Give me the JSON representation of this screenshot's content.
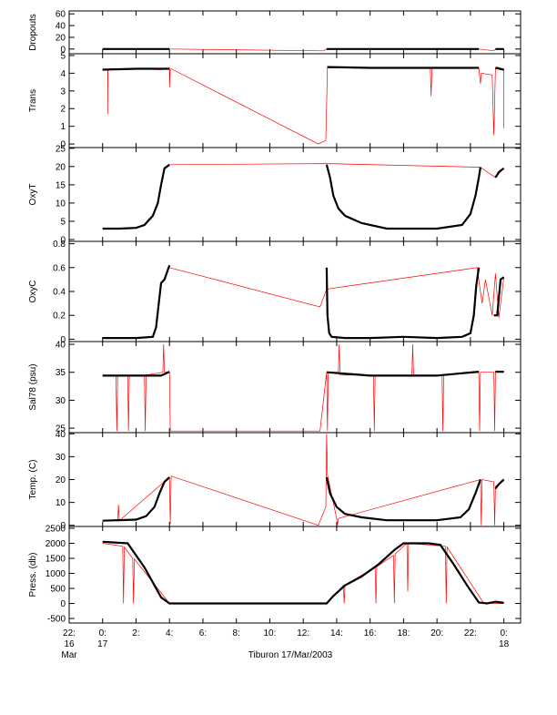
{
  "figure": {
    "caption": "Tiburon 17/Mar/2003",
    "x_ticks": [
      {
        "line1": "22:",
        "line2": "16",
        "line3": "Mar"
      },
      {
        "line1": "0:",
        "line2": "17",
        "line3": ""
      },
      {
        "line1": "2:",
        "line2": "",
        "line3": ""
      },
      {
        "line1": "4:",
        "line2": "",
        "line3": ""
      },
      {
        "line1": "6:",
        "line2": "",
        "line3": ""
      },
      {
        "line1": "8:",
        "line2": "",
        "line3": ""
      },
      {
        "line1": "10:",
        "line2": "",
        "line3": ""
      },
      {
        "line1": "12:",
        "line2": "",
        "line3": ""
      },
      {
        "line1": "14:",
        "line2": "",
        "line3": ""
      },
      {
        "line1": "16:",
        "line2": "",
        "line3": ""
      },
      {
        "line1": "18:",
        "line2": "",
        "line3": ""
      },
      {
        "line1": "20:",
        "line2": "",
        "line3": ""
      },
      {
        "line1": "22:",
        "line2": "",
        "line3": ""
      },
      {
        "line1": "0:",
        "line2": "18",
        "line3": ""
      }
    ],
    "colors": {
      "raw": "#ff0000",
      "filtered": "#000000",
      "axis": "#000000"
    }
  },
  "chart_data": [
    {
      "type": "line",
      "ylabel": "Dropouts",
      "yticks": [
        0,
        20,
        40,
        60
      ],
      "ylim": [
        -8,
        65
      ],
      "xlim": [
        -2,
        25
      ],
      "x_unit": "hours from 17/Mar/2003 00:00",
      "series": [
        {
          "role": "raw",
          "x": [
            0,
            4,
            13.2,
            13.4,
            22.5,
            23.4,
            23.5,
            24
          ],
          "y": [
            0,
            0,
            -3,
            0,
            0,
            -3,
            0,
            0
          ]
        },
        {
          "role": "filtered",
          "x": [
            0,
            4,
            null,
            13.4,
            22.5,
            null,
            23.5,
            24
          ],
          "y": [
            0,
            0,
            null,
            0,
            0,
            null,
            0,
            0
          ]
        }
      ]
    },
    {
      "type": "line",
      "ylabel": "Trans",
      "yticks": [
        0,
        1,
        2,
        3,
        4,
        5
      ],
      "ylim": [
        -0.2,
        5.1
      ],
      "xlim": [
        -2,
        25
      ],
      "x_unit": "hours from 17/Mar/2003 00:00",
      "series": [
        {
          "role": "raw",
          "x": [
            0,
            0.3,
            0.3,
            0.32,
            0.4,
            2,
            3.5,
            4,
            4,
            4.05,
            4.1,
            12.9,
            13.35,
            13.45,
            13.5,
            13.6,
            19.6,
            19.65,
            19.7,
            22.5,
            22.6,
            22.65,
            23.3,
            23.4,
            23.5,
            23.6,
            24,
            24
          ],
          "y": [
            4.2,
            4.2,
            1.7,
            4.1,
            4.25,
            4.25,
            4.2,
            4.3,
            3.2,
            4.2,
            4.25,
            0,
            0.2,
            4.4,
            4.3,
            4.3,
            4.3,
            2.7,
            4.3,
            4.3,
            3.4,
            4.0,
            3.9,
            0.5,
            4.3,
            4.35,
            4.2,
            0.9
          ]
        },
        {
          "role": "filtered",
          "x": [
            0,
            2,
            3.5,
            4,
            null,
            13.45,
            16,
            19,
            22.5,
            null,
            23.5,
            24
          ],
          "y": [
            4.2,
            4.25,
            4.25,
            4.25,
            null,
            4.35,
            4.3,
            4.3,
            4.3,
            null,
            4.3,
            4.2
          ]
        }
      ]
    },
    {
      "type": "line",
      "ylabel": "OxyT",
      "yticks": [
        0,
        5,
        10,
        15,
        20,
        25
      ],
      "ylim": [
        -0.5,
        25.2
      ],
      "xlim": [
        -2,
        25
      ],
      "x_unit": "hours from 17/Mar/2003 00:00",
      "series": [
        {
          "role": "raw",
          "x": [
            4,
            13.4,
            22.6,
            23.5,
            24
          ],
          "y": [
            20.5,
            20.8,
            19.8,
            17,
            19.5
          ]
        },
        {
          "role": "filtered",
          "x": [
            0,
            1,
            2,
            2.5,
            3.0,
            3.3,
            3.5,
            3.7,
            4,
            null,
            13.4,
            13.6,
            13.8,
            14.1,
            14.5,
            15.5,
            17,
            20,
            21.5,
            22.0,
            22.3,
            22.5,
            22.6,
            null,
            23.5,
            23.7,
            24
          ],
          "y": [
            3,
            3,
            3.2,
            4,
            6.5,
            10,
            15,
            19.5,
            20.5,
            null,
            20.5,
            17,
            12,
            8.5,
            6.5,
            4.5,
            3,
            3,
            4,
            7,
            12,
            17,
            19.8,
            null,
            17,
            18.5,
            19.5
          ]
        }
      ]
    },
    {
      "type": "line",
      "ylabel": "OxyC",
      "yticks": [
        0.0,
        0.2,
        0.4,
        0.6,
        0.8
      ],
      "ylim": [
        -0.02,
        0.82
      ],
      "xlim": [
        -2,
        25
      ],
      "x_unit": "hours from 17/Mar/2003 00:00",
      "series": [
        {
          "role": "raw",
          "x": [
            4,
            13.0,
            13.4,
            22.4,
            22.7,
            22.9,
            23.3,
            23.5,
            23.7,
            24
          ],
          "y": [
            0.6,
            0.27,
            0.42,
            0.6,
            0.3,
            0.5,
            0.2,
            0.55,
            0.18,
            0.52
          ]
        },
        {
          "role": "filtered",
          "x": [
            0,
            1,
            2,
            3,
            3.2,
            3.4,
            3.5,
            3.7,
            4,
            null,
            13.4,
            13.45,
            13.55,
            13.7,
            14.5,
            16,
            18,
            20,
            21.5,
            22.0,
            22.2,
            22.35,
            22.5,
            null,
            23.4,
            23.6,
            23.8,
            24
          ],
          "y": [
            0.01,
            0.01,
            0.01,
            0.02,
            0.1,
            0.35,
            0.47,
            0.5,
            0.62,
            null,
            0.6,
            0.2,
            0.05,
            0.02,
            0.01,
            0.01,
            0.02,
            0.01,
            0.02,
            0.05,
            0.2,
            0.45,
            0.6,
            null,
            0.2,
            0.2,
            0.5,
            0.52
          ]
        }
      ]
    },
    {
      "type": "line",
      "ylabel": "Sal78 (psu)",
      "yticks": [
        25,
        30,
        35,
        40
      ],
      "ylim": [
        24.2,
        40.5
      ],
      "xlim": [
        -2,
        25
      ],
      "x_unit": "hours from 17/Mar/2003 00:00",
      "series": [
        {
          "role": "raw",
          "x": [
            0,
            0.8,
            0.85,
            0.9,
            1.5,
            1.55,
            1.6,
            2.5,
            2.55,
            2.6,
            3.6,
            3.65,
            3.7,
            4,
            4.05,
            13.0,
            13.4,
            13.45,
            13.5,
            14.1,
            14.15,
            14.2,
            16.2,
            16.25,
            16.3,
            18.5,
            18.55,
            18.6,
            20.3,
            20.35,
            20.4,
            22.5,
            22.55,
            22.6,
            23.4,
            23.45,
            23.5,
            24
          ],
          "y": [
            34.5,
            34.5,
            24.5,
            34.5,
            34.5,
            24.5,
            34.5,
            34.5,
            24.5,
            34.5,
            35,
            40,
            35,
            35,
            24.5,
            24.5,
            35,
            24.5,
            35,
            35,
            40,
            34.5,
            34.5,
            24.5,
            34.5,
            34.5,
            40,
            34.5,
            34.5,
            24.5,
            34.5,
            35,
            24.5,
            35,
            35,
            24.5,
            35,
            35
          ]
        },
        {
          "role": "filtered",
          "x": [
            0,
            3.5,
            4,
            null,
            13.4,
            16,
            20,
            22.5,
            null,
            23.5,
            24
          ],
          "y": [
            34.4,
            34.4,
            35.1,
            null,
            35.0,
            34.4,
            34.4,
            35.1,
            null,
            35.1,
            35.1
          ]
        }
      ]
    },
    {
      "type": "line",
      "ylabel": "Temp. (C)",
      "yticks": [
        0,
        10,
        20,
        30,
        40
      ],
      "ylim": [
        -0.5,
        40.5
      ],
      "xlim": [
        -2,
        25
      ],
      "x_unit": "hours from 17/Mar/2003 00:00",
      "series": [
        {
          "role": "raw",
          "x": [
            0,
            0.9,
            0.95,
            1.0,
            4,
            4.05,
            4.1,
            12.9,
            13.35,
            13.4,
            13.45,
            14.0,
            14.05,
            14.1,
            22.6,
            22.65,
            22.7,
            23.4,
            23.45,
            23.5,
            24
          ],
          "y": [
            2,
            2,
            9,
            2,
            21,
            0.5,
            21.5,
            0,
            8,
            40,
            22,
            3,
            0,
            3,
            20,
            0,
            20,
            19,
            0,
            17,
            20
          ]
        },
        {
          "role": "filtered",
          "x": [
            0,
            2,
            2.6,
            3.1,
            3.4,
            3.7,
            4,
            null,
            13.4,
            13.6,
            14.0,
            14.5,
            15.5,
            17,
            20,
            21.4,
            21.9,
            22.3,
            22.6,
            null,
            23.5,
            23.7,
            24
          ],
          "y": [
            2,
            2.5,
            4,
            8,
            14,
            19,
            21,
            null,
            21,
            14,
            8,
            5,
            3.5,
            2.2,
            2.2,
            3.5,
            7,
            14,
            20,
            null,
            16,
            18,
            20
          ]
        }
      ]
    },
    {
      "type": "line",
      "ylabel": "Press. (db)",
      "yticks": [
        -500,
        0,
        500,
        1000,
        1500,
        2000,
        2500
      ],
      "ylim": [
        -650,
        2560
      ],
      "xlim": [
        -2,
        25
      ],
      "x_unit": "hours from 17/Mar/2003 00:00",
      "series": [
        {
          "role": "raw",
          "x": [
            0,
            1.2,
            1.25,
            1.3,
            1.8,
            1.85,
            1.9,
            4,
            13.0,
            13.4,
            14.4,
            14.45,
            14.5,
            16.3,
            16.35,
            16.4,
            17.4,
            17.45,
            17.5,
            18.2,
            18.25,
            18.3,
            20.5,
            20.55,
            20.6,
            22.8,
            24
          ],
          "y": [
            2000,
            1900,
            0,
            1880,
            1500,
            0,
            1480,
            0,
            0,
            0,
            600,
            0,
            620,
            1200,
            0,
            1220,
            1600,
            0,
            1650,
            2000,
            400,
            2000,
            1900,
            0,
            1880,
            0,
            0
          ]
        },
        {
          "role": "filtered",
          "x": [
            0,
            1.5,
            2.0,
            2.5,
            3.0,
            3.5,
            4,
            8,
            13.4,
            13.8,
            14.5,
            15.5,
            16.5,
            17.5,
            18,
            19.5,
            20.2,
            21,
            21.8,
            22.5,
            23,
            23.5,
            24
          ],
          "y": [
            2050,
            2000,
            1600,
            1200,
            700,
            200,
            0,
            0,
            0,
            250,
            600,
            900,
            1300,
            1800,
            2000,
            2000,
            1950,
            1300,
            600,
            30,
            0,
            60,
            20
          ]
        }
      ]
    }
  ]
}
